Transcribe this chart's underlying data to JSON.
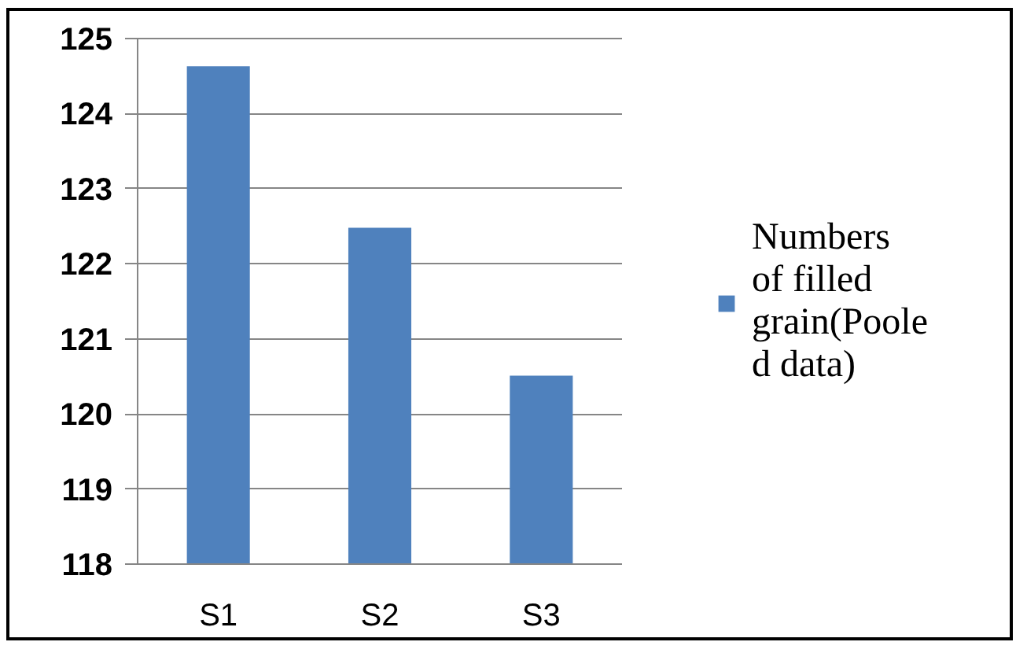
{
  "chart_data": {
    "type": "bar",
    "categories": [
      "S1",
      "S2",
      "S3"
    ],
    "series": [
      {
        "name": "Numbers of filled grain(Pooled data)",
        "color": "#4f81bd",
        "values": [
          124.63,
          122.48,
          120.51
        ]
      }
    ],
    "ylim": [
      118,
      125
    ],
    "yticks": [
      118,
      119,
      120,
      121,
      122,
      123,
      124,
      125
    ],
    "grid": "y",
    "legend": "right"
  }
}
